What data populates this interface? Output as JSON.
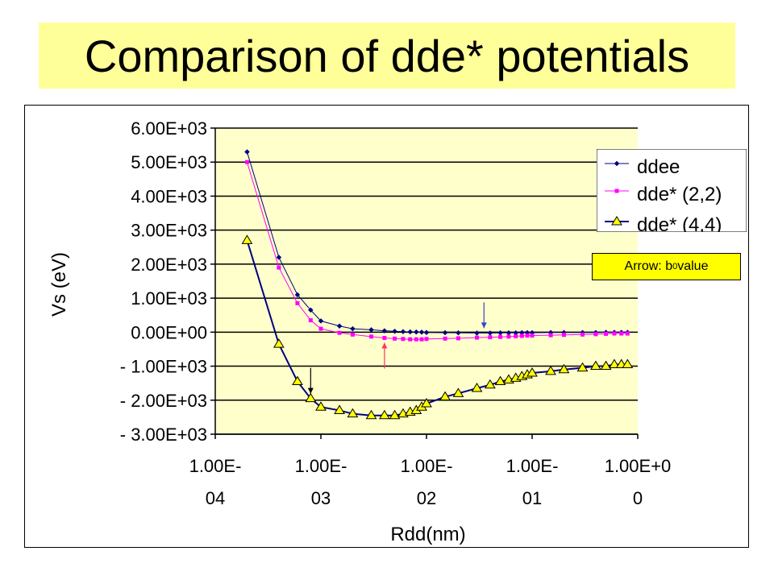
{
  "slide": {
    "title": "Comparison of dde* potentials",
    "note": {
      "prefix": "Arrow: b",
      "subscript": "0",
      "suffix": " value"
    }
  },
  "colors": {
    "title_band": "#ffff99",
    "plot_area": "#ffffcc",
    "ddee": "#000080",
    "dde22": "#ff00ff",
    "dde44_line": "#000080",
    "dde44_marker": "#ffff00",
    "arrow_ddee": "#3344cc",
    "arrow_dde22": "#ff3366",
    "arrow_dde44": "#000000",
    "note_box": "#ffff00"
  },
  "chart_data": {
    "type": "line",
    "x_scale": "log",
    "xlabel": "Rdd(nm)",
    "ylabel": "Vs (eV)",
    "xlim": [
      0.0001,
      1.0
    ],
    "ylim": [
      -3000,
      6000
    ],
    "x_ticks": [
      {
        "value": 0.0001,
        "line1": "1.00E-",
        "line2": "04"
      },
      {
        "value": 0.001,
        "line1": "1.00E-",
        "line2": "03"
      },
      {
        "value": 0.01,
        "line1": "1.00E-",
        "line2": "02"
      },
      {
        "value": 0.1,
        "line1": "1.00E-",
        "line2": "01"
      },
      {
        "value": 1.0,
        "line1": "1.00E+0",
        "line2": "0"
      }
    ],
    "y_ticks": [
      {
        "value": 6000,
        "label": "6.00E+03"
      },
      {
        "value": 5000,
        "label": "5.00E+03"
      },
      {
        "value": 4000,
        "label": "4.00E+03"
      },
      {
        "value": 3000,
        "label": "3.00E+03"
      },
      {
        "value": 2000,
        "label": "2.00E+03"
      },
      {
        "value": 1000,
        "label": "1.00E+03"
      },
      {
        "value": 0,
        "label": "0.00E+00"
      },
      {
        "value": -1000,
        "label": "- 1.00E+03"
      },
      {
        "value": -2000,
        "label": "- 2.00E+03"
      },
      {
        "value": -3000,
        "label": "- 3.00E+03"
      }
    ],
    "grid": {
      "horizontal": true,
      "vertical": false
    },
    "legend_position": "top-right",
    "series": [
      {
        "name": "ddee",
        "marker": "diamond",
        "x": [
          0.0002,
          0.0004,
          0.0006,
          0.0008,
          0.001,
          0.0015,
          0.002,
          0.003,
          0.004,
          0.005,
          0.006,
          0.007,
          0.008,
          0.009,
          0.01,
          0.015,
          0.02,
          0.03,
          0.04,
          0.05,
          0.06,
          0.07,
          0.08,
          0.09,
          0.1,
          0.15,
          0.2,
          0.3,
          0.4,
          0.5,
          0.6,
          0.7,
          0.8
        ],
        "y": [
          5300,
          2200,
          1100,
          650,
          330,
          180,
          100,
          70,
          40,
          25,
          15,
          8,
          5,
          0,
          -10,
          -15,
          -20,
          -25,
          -25,
          -20,
          -20,
          -20,
          -15,
          -15,
          -15,
          -10,
          -10,
          -10,
          -10,
          -5,
          -5,
          -5,
          -5
        ]
      },
      {
        "name": "dde* (2,2)",
        "marker": "square",
        "x": [
          0.0002,
          0.0004,
          0.0006,
          0.0008,
          0.001,
          0.0015,
          0.002,
          0.003,
          0.004,
          0.005,
          0.006,
          0.007,
          0.008,
          0.009,
          0.01,
          0.015,
          0.02,
          0.03,
          0.04,
          0.05,
          0.06,
          0.07,
          0.08,
          0.09,
          0.1,
          0.15,
          0.2,
          0.3,
          0.4,
          0.5,
          0.6,
          0.7,
          0.8
        ],
        "y": [
          5000,
          1900,
          850,
          350,
          100,
          -20,
          -70,
          -130,
          -170,
          -190,
          -200,
          -210,
          -210,
          -210,
          -200,
          -190,
          -180,
          -160,
          -150,
          -140,
          -130,
          -120,
          -110,
          -100,
          -100,
          -90,
          -80,
          -70,
          -60,
          -50,
          -40,
          -40,
          -40
        ]
      },
      {
        "name": "dde* (4,4)",
        "marker": "triangle",
        "x": [
          0.0002,
          0.0004,
          0.0006,
          0.0008,
          0.001,
          0.0015,
          0.002,
          0.003,
          0.004,
          0.005,
          0.006,
          0.007,
          0.008,
          0.009,
          0.01,
          0.015,
          0.02,
          0.03,
          0.04,
          0.05,
          0.06,
          0.07,
          0.08,
          0.09,
          0.1,
          0.15,
          0.2,
          0.3,
          0.4,
          0.5,
          0.6,
          0.7,
          0.8
        ],
        "y": [
          2700,
          -350,
          -1450,
          -1950,
          -2200,
          -2300,
          -2400,
          -2450,
          -2450,
          -2450,
          -2400,
          -2350,
          -2300,
          -2200,
          -2100,
          -1900,
          -1800,
          -1650,
          -1550,
          -1450,
          -1400,
          -1350,
          -1300,
          -1250,
          -1200,
          -1150,
          -1100,
          -1050,
          -1000,
          -1000,
          -950,
          -950,
          -950
        ]
      }
    ],
    "annotations": [
      {
        "marker": "arrow",
        "series": "ddee",
        "x": 0.035,
        "direction": "down",
        "color_key": "arrow_ddee"
      },
      {
        "marker": "arrow",
        "series": "dde* (2,2)",
        "x": 0.004,
        "direction": "up",
        "color_key": "arrow_dde22"
      },
      {
        "marker": "arrow",
        "series": "dde* (4,4)",
        "x": 0.0008,
        "direction": "down",
        "color_key": "arrow_dde44"
      }
    ]
  }
}
